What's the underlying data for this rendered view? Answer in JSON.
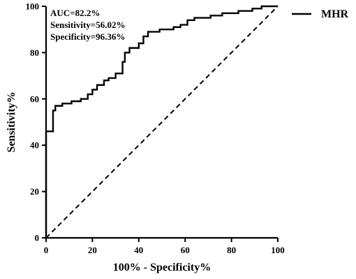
{
  "chart_data": {
    "type": "line",
    "xlabel": "100% - Specificity%",
    "ylabel": "Sensitivity%",
    "xlim": [
      0,
      100
    ],
    "ylim": [
      0,
      100
    ],
    "xticks": [
      0,
      20,
      40,
      60,
      80,
      100
    ],
    "yticks": [
      0,
      20,
      40,
      60,
      80,
      100
    ],
    "legend_position": "top-right",
    "annotations": [
      "AUC=82.2%",
      "Sensitivity=56.02%",
      "Specificity=96.36%"
    ],
    "series": [
      {
        "name": "MHR",
        "style": "solid",
        "color": "#000000",
        "x": [
          0,
          0,
          3,
          3,
          4,
          4,
          7,
          7,
          11,
          11,
          15,
          15,
          18,
          18,
          20,
          20,
          22,
          22,
          25,
          25,
          27,
          27,
          30,
          30,
          33,
          33,
          34,
          34,
          36,
          36,
          40,
          40,
          42,
          42,
          44,
          44,
          49,
          49,
          55,
          55,
          58,
          58,
          61,
          61,
          64,
          64,
          71,
          71,
          76,
          76,
          83,
          83,
          89,
          89,
          93,
          93,
          97,
          97,
          100
        ],
        "y": [
          0,
          46,
          46,
          55,
          55,
          57,
          57,
          58,
          58,
          59,
          59,
          60,
          60,
          62,
          62,
          64,
          64,
          66,
          66,
          68,
          68,
          69,
          69,
          71,
          71,
          76,
          76,
          80,
          80,
          82,
          82,
          84,
          84,
          87,
          87,
          89,
          89,
          90,
          90,
          91,
          91,
          92,
          92,
          94,
          94,
          95,
          95,
          96,
          96,
          97,
          97,
          98,
          98,
          99,
          99,
          100,
          100,
          100,
          100
        ]
      },
      {
        "name": "",
        "style": "dashed",
        "color": "#000000",
        "x": [
          0,
          100
        ],
        "y": [
          0,
          100
        ]
      }
    ]
  }
}
